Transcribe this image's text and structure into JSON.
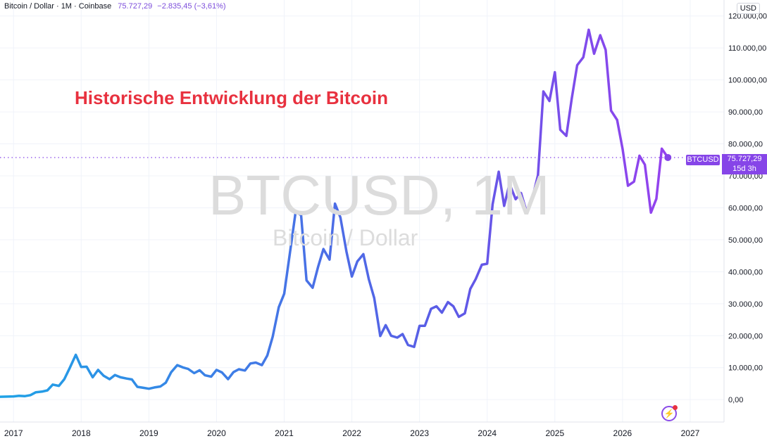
{
  "header": {
    "symbol_text": "Bitcoin / Dollar · 1M · Coinbase",
    "price": "75.727,29",
    "change": "−2.835,45 (−3,61%)",
    "currency": "USD"
  },
  "watermark": {
    "symbol": "BTCUSD, 1M",
    "name": "Bitcoin / Dollar"
  },
  "annotation": {
    "title": "Historische Entwicklung der Bitcoin",
    "color": "#e8313f"
  },
  "price_tag": {
    "symbol": "BTCUSD",
    "price": "75.727,29",
    "countdown": "15d 3h"
  },
  "icons": {
    "logo": "lightning-logo-icon"
  },
  "colors": {
    "line_start": "#1fa2e6",
    "line_mid": "#5b5be6",
    "line_end": "#a23cf0",
    "accent": "#8645e8"
  },
  "chart_data": {
    "type": "line",
    "title": "Historische Entwicklung der Bitcoin",
    "xlabel": "",
    "ylabel": "",
    "ylim": [
      -7000,
      125000
    ],
    "xlim": [
      2016.8,
      2027.5
    ],
    "grid": true,
    "x_ticks": [
      "2017",
      "2018",
      "2019",
      "2020",
      "2021",
      "2022",
      "2023",
      "2024",
      "2025",
      "2026",
      "2027"
    ],
    "y_ticks": [
      {
        "value": 0,
        "label": "0,00"
      },
      {
        "value": 10000,
        "label": "10.000,00"
      },
      {
        "value": 20000,
        "label": "20.000,00"
      },
      {
        "value": 30000,
        "label": "30.000,00"
      },
      {
        "value": 40000,
        "label": "40.000,00"
      },
      {
        "value": 50000,
        "label": "50.000,00"
      },
      {
        "value": 60000,
        "label": "60.000,00"
      },
      {
        "value": 70000,
        "label": "70.000,00"
      },
      {
        "value": 80000,
        "label": "80.000,00"
      },
      {
        "value": 90000,
        "label": "90.000,00"
      },
      {
        "value": 100000,
        "label": "100.000,00"
      },
      {
        "value": 110000,
        "label": "110.000,00"
      },
      {
        "value": 120000,
        "label": "120.000,00"
      }
    ],
    "last_price": 75727.29,
    "series": [
      {
        "x": [
          2016.8,
          2017.0,
          2017.08,
          2017.17,
          2017.25,
          2017.33,
          2017.42,
          2017.5,
          2017.58,
          2017.67,
          2017.75,
          2017.83,
          2017.92,
          2018.0,
          2018.08,
          2018.17,
          2018.25,
          2018.33,
          2018.42,
          2018.5,
          2018.58,
          2018.67,
          2018.75,
          2018.83,
          2018.92,
          2019.0,
          2019.08,
          2019.17,
          2019.25,
          2019.33,
          2019.42,
          2019.5,
          2019.58,
          2019.67,
          2019.75,
          2019.83,
          2019.92,
          2020.0,
          2020.08,
          2020.17,
          2020.25,
          2020.33,
          2020.42,
          2020.5,
          2020.58,
          2020.67,
          2020.75,
          2020.83,
          2020.92,
          2021.0,
          2021.08,
          2021.17,
          2021.25,
          2021.33,
          2021.42,
          2021.5,
          2021.58,
          2021.67,
          2021.75,
          2021.83,
          2021.92,
          2022.0,
          2022.08,
          2022.17,
          2022.25,
          2022.33,
          2022.42,
          2022.5,
          2022.58,
          2022.67,
          2022.75,
          2022.83,
          2022.92,
          2023.0,
          2023.08,
          2023.17,
          2023.25,
          2023.33,
          2023.42,
          2023.5,
          2023.58,
          2023.67,
          2023.75,
          2023.83,
          2023.92,
          2024.0,
          2024.08,
          2024.17,
          2024.25,
          2024.33,
          2024.42,
          2024.5,
          2024.58,
          2024.67,
          2024.75,
          2024.83,
          2024.92,
          2025.0,
          2025.08,
          2025.17,
          2025.25,
          2025.33,
          2025.42,
          2025.5,
          2025.58,
          2025.67,
          2025.75,
          2025.83,
          2025.92,
          2026.0,
          2026.08,
          2026.17,
          2026.25,
          2026.33,
          2026.42,
          2026.5,
          2026.58,
          2026.67
        ],
        "y": [
          900,
          1000,
          1200,
          1100,
          1400,
          2300,
          2500,
          2900,
          4700,
          4300,
          6400,
          9900,
          14000,
          10200,
          10300,
          7000,
          9300,
          7500,
          6400,
          7700,
          7000,
          6600,
          6300,
          4000,
          3700,
          3400,
          3800,
          4100,
          5300,
          8600,
          10800,
          10100,
          9600,
          8300,
          9200,
          7600,
          7200,
          9300,
          8500,
          6400,
          8600,
          9500,
          9100,
          11300,
          11600,
          10800,
          13800,
          19700,
          28900,
          33100,
          45200,
          58800,
          57700,
          37300,
          35000,
          41500,
          47100,
          43800,
          61300,
          57000,
          46300,
          38500,
          43200,
          45500,
          37700,
          31800,
          19900,
          23300,
          20000,
          19400,
          20500,
          17100,
          16500,
          23100,
          23100,
          28400,
          29200,
          27200,
          30500,
          29200,
          25900,
          27000,
          34600,
          37700,
          42200,
          42500,
          61100,
          71300,
          60600,
          67500,
          62700,
          64600,
          58900,
          63300,
          70200,
          96400,
          93400,
          102400,
          84400,
          82500,
          94200,
          104600,
          107100,
          115700,
          108200,
          114000,
          109400,
          90400,
          87500,
          78500,
          66900,
          68200,
          76300,
          73500,
          58500,
          62800,
          78500,
          75727.29
        ]
      }
    ]
  }
}
